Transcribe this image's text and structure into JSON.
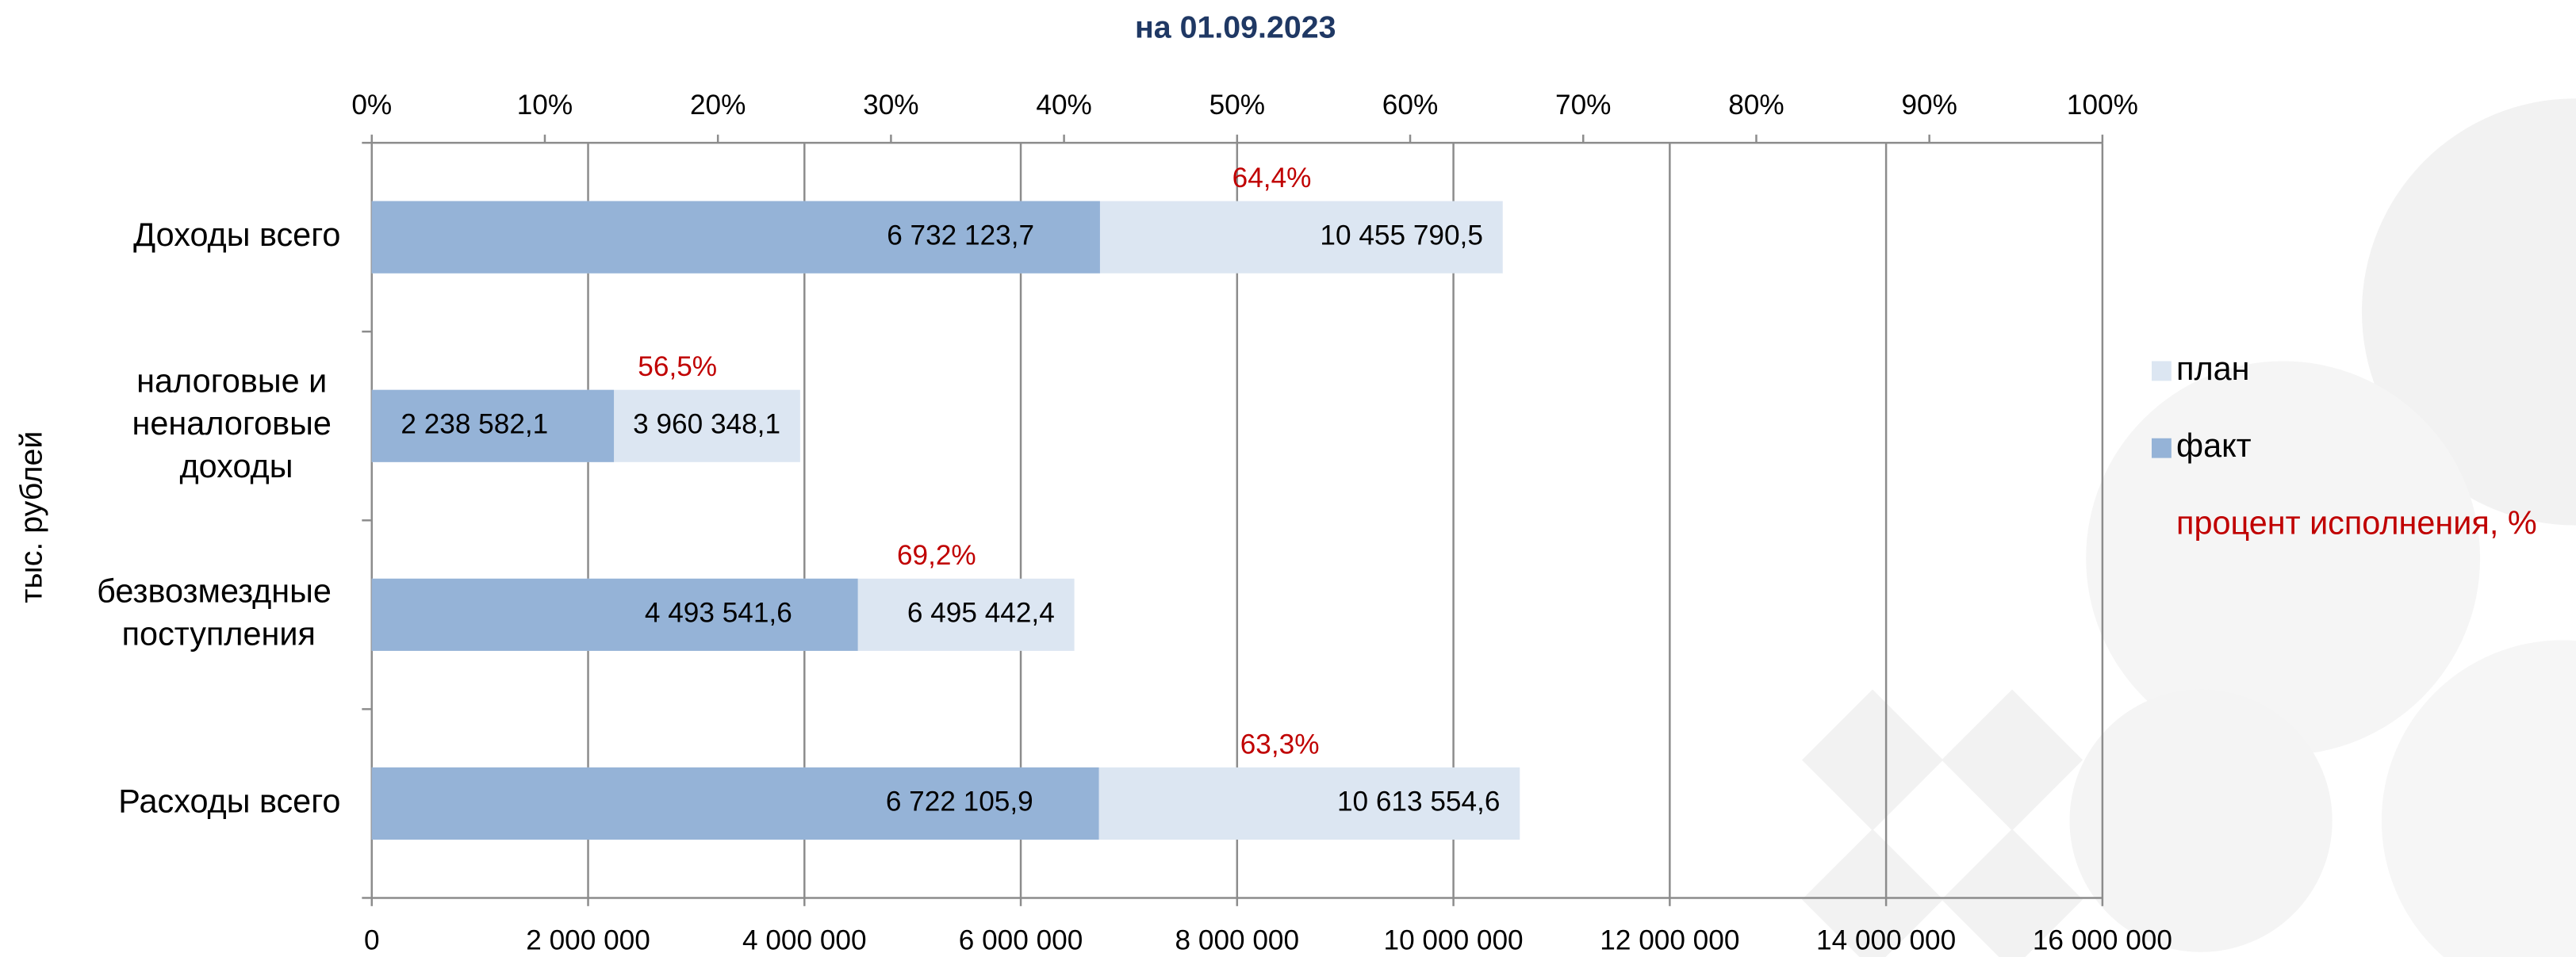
{
  "chart_data": {
    "type": "bar",
    "orientation": "horizontal",
    "title": "на 01.09.2023",
    "y_label": "тыс. рублей",
    "categories": [
      "Доходы всего",
      "налоговые и неналоговые доходы",
      "безвозмездные поступления",
      "Расходы всего"
    ],
    "series": [
      {
        "name": "план",
        "color": "#dce6f2",
        "values": [
          10455790.5,
          3960348.1,
          6495442.4,
          10613554.6
        ],
        "value_labels": [
          "10 455 790,5",
          "3 960 348,1",
          "6 495 442,4",
          "10 613 554,6"
        ]
      },
      {
        "name": "факт",
        "color": "#95b3d7",
        "values": [
          6732123.7,
          2238582.1,
          4493541.6,
          6722105.9
        ],
        "value_labels": [
          "6 732 123,7",
          "2 238 582,1",
          "4 493 541,6",
          "6 722 105,9"
        ]
      },
      {
        "name": "процент исполнения, %",
        "color": "#c00000",
        "values": [
          64.4,
          56.5,
          69.2,
          63.3
        ],
        "value_labels": [
          "64,4%",
          "56,5%",
          "69,2%",
          "63,3%"
        ]
      }
    ],
    "xlim": [
      0,
      16000000
    ],
    "xticks": [
      0,
      {
        "value": 2000000,
        "label": "2 000 000"
      },
      {
        "value": 4000000,
        "label": "4 000 000"
      },
      {
        "value": 6000000,
        "label": "6 000 000"
      },
      {
        "value": 8000000,
        "label": "8 000 000"
      },
      {
        "value": 10000000,
        "label": "10 000 000"
      },
      {
        "value": 12000000,
        "label": "12 000 000"
      },
      {
        "value": 14000000,
        "label": "14 000 000"
      },
      {
        "value": 16000000,
        "label": "16 000 000"
      }
    ],
    "x2lim": [
      0,
      100
    ],
    "x2ticks": [
      {
        "value": 0,
        "label": "0%"
      },
      {
        "value": 10,
        "label": "10%"
      },
      {
        "value": 20,
        "label": "20%"
      },
      {
        "value": 30,
        "label": "30%"
      },
      {
        "value": 40,
        "label": "40%"
      },
      {
        "value": 50,
        "label": "50%"
      },
      {
        "value": 60,
        "label": "60%"
      },
      {
        "value": 70,
        "label": "70%"
      },
      {
        "value": 80,
        "label": "80%"
      },
      {
        "value": 90,
        "label": "90%"
      },
      {
        "value": 100,
        "label": "100%"
      }
    ],
    "grid": true,
    "legend": "right"
  }
}
